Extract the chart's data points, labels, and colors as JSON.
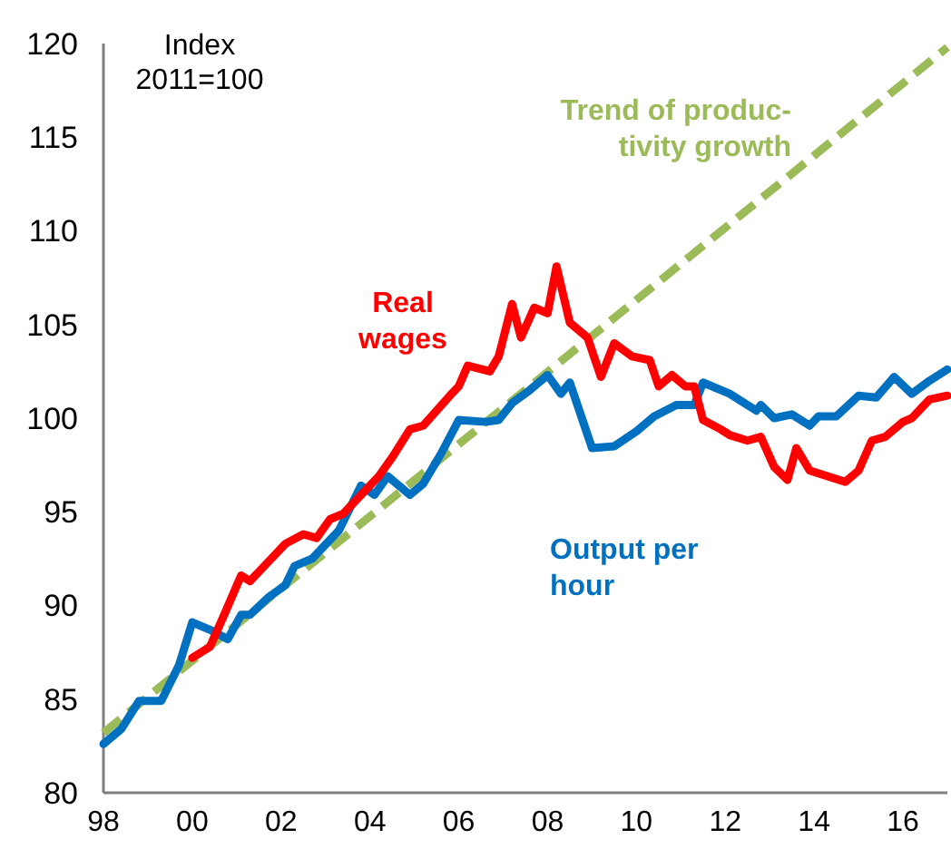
{
  "chart_data": {
    "type": "line",
    "ylabel": "Index\n2011=100",
    "xlim": [
      1998,
      2017
    ],
    "ylim": [
      80,
      120
    ],
    "xticks": [
      {
        "value": 1998,
        "label": "98"
      },
      {
        "value": 2000,
        "label": "00"
      },
      {
        "value": 2002,
        "label": "02"
      },
      {
        "value": 2004,
        "label": "04"
      },
      {
        "value": 2006,
        "label": "06"
      },
      {
        "value": 2008,
        "label": "08"
      },
      {
        "value": 2010,
        "label": "10"
      },
      {
        "value": 2012,
        "label": "12"
      },
      {
        "value": 2014,
        "label": "14"
      },
      {
        "value": 2016,
        "label": "16"
      }
    ],
    "yticks": [
      80,
      85,
      90,
      95,
      100,
      105,
      110,
      115,
      120
    ],
    "grid": false,
    "legend": false,
    "series": [
      {
        "name": "Trend of produc-\ntivity growth",
        "color": "#9bbb59",
        "line_style": "dashed",
        "x": [
          1998,
          2017
        ],
        "values": [
          83.2,
          119.8
        ]
      },
      {
        "name": "Output per\nhour",
        "color": "#0070c0",
        "line_style": "solid",
        "x": [
          1998.0,
          1998.4,
          1998.8,
          1999.3,
          1999.7,
          2000.0,
          2000.4,
          2000.8,
          2001.1,
          2001.3,
          2001.7,
          2002.1,
          2002.3,
          2002.7,
          2003.3,
          2003.8,
          2004.1,
          2004.4,
          2004.9,
          2005.2,
          2005.6,
          2006.0,
          2006.6,
          2006.9,
          2007.2,
          2007.6,
          2008.0,
          2008.3,
          2008.5,
          2009.0,
          2009.5,
          2010.0,
          2010.4,
          2010.9,
          2011.3,
          2011.5,
          2012.1,
          2012.7,
          2012.8,
          2013.1,
          2013.5,
          2013.9,
          2014.1,
          2014.5,
          2015.0,
          2015.4,
          2015.8,
          2016.2,
          2016.6,
          2017.0
        ],
        "values": [
          82.6,
          83.4,
          84.9,
          84.9,
          86.8,
          89.1,
          88.7,
          88.2,
          89.5,
          89.5,
          90.4,
          91.1,
          92.1,
          92.5,
          94.0,
          96.4,
          95.9,
          96.9,
          95.9,
          96.5,
          98.1,
          99.9,
          99.8,
          99.9,
          100.8,
          101.5,
          102.3,
          101.3,
          101.9,
          98.4,
          98.5,
          99.3,
          100.1,
          100.7,
          100.7,
          101.9,
          101.3,
          100.4,
          100.7,
          100.0,
          100.2,
          99.6,
          100.1,
          100.1,
          101.2,
          101.1,
          102.2,
          101.3,
          102.0,
          102.6
        ]
      },
      {
        "name": "Real\nwages",
        "color": "#ff0000",
        "line_style": "solid",
        "x": [
          2000.0,
          2000.4,
          2000.7,
          2001.1,
          2001.3,
          2001.7,
          2002.1,
          2002.5,
          2002.8,
          2003.1,
          2003.4,
          2003.8,
          2004.2,
          2004.5,
          2004.9,
          2005.2,
          2005.8,
          2006.0,
          2006.2,
          2006.7,
          2006.9,
          2007.2,
          2007.4,
          2007.7,
          2008.0,
          2008.2,
          2008.5,
          2008.9,
          2009.2,
          2009.5,
          2009.9,
          2010.3,
          2010.5,
          2010.8,
          2011.1,
          2011.3,
          2011.5,
          2011.9,
          2012.1,
          2012.5,
          2012.8,
          2013.1,
          2013.4,
          2013.6,
          2013.9,
          2014.3,
          2014.7,
          2015.0,
          2015.3,
          2015.6,
          2016.0,
          2016.2,
          2016.6,
          2017.0
        ],
        "values": [
          87.2,
          87.8,
          89.4,
          91.6,
          91.3,
          92.3,
          93.3,
          93.8,
          93.6,
          94.6,
          94.9,
          95.9,
          96.9,
          97.9,
          99.4,
          99.6,
          101.2,
          101.7,
          102.8,
          102.5,
          103.3,
          106.1,
          104.3,
          105.9,
          105.6,
          108.1,
          105.1,
          104.3,
          102.2,
          104.0,
          103.3,
          103.1,
          101.7,
          102.3,
          101.7,
          101.7,
          99.9,
          99.4,
          99.1,
          98.8,
          99.0,
          97.4,
          96.7,
          98.4,
          97.2,
          96.9,
          96.6,
          97.2,
          98.8,
          99.0,
          99.8,
          100.0,
          101.0,
          101.2
        ]
      }
    ]
  }
}
